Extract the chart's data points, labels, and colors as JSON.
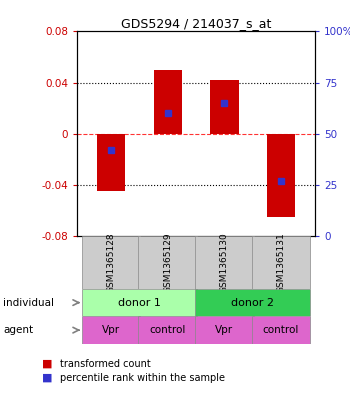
{
  "title": "GDS5294 / 214037_s_at",
  "samples": [
    "GSM1365128",
    "GSM1365129",
    "GSM1365130",
    "GSM1365131"
  ],
  "bar_values": [
    -0.045,
    0.05,
    0.042,
    -0.065
  ],
  "percentile_values": [
    0.42,
    0.6,
    0.65,
    0.27
  ],
  "ylim_left": [
    -0.08,
    0.08
  ],
  "ylim_right": [
    0,
    100
  ],
  "yticks_left": [
    -0.08,
    -0.04,
    0,
    0.04,
    0.08
  ],
  "yticks_right": [
    0,
    25,
    50,
    75,
    100
  ],
  "ytick_labels_left": [
    "-0.08",
    "-0.04",
    "0",
    "0.04",
    "0.08"
  ],
  "ytick_labels_right": [
    "0",
    "25",
    "50",
    "75",
    "100%"
  ],
  "hlines_dotted": [
    -0.04,
    0.04
  ],
  "hline_dashed_red": 0,
  "bar_color": "#cc0000",
  "blue_color": "#3333cc",
  "bar_width": 0.5,
  "individual_labels": [
    "donor 1",
    "donor 2"
  ],
  "individual_colors": [
    "#aaffaa",
    "#33cc55"
  ],
  "agent_labels": [
    "Vpr",
    "control",
    "Vpr",
    "control"
  ],
  "agent_color": "#dd66cc",
  "sample_box_color": "#cccccc",
  "legend_red_label": "transformed count",
  "legend_blue_label": "percentile rank within the sample",
  "left_tick_color": "#cc0000",
  "right_tick_color": "#3333cc",
  "figwidth": 3.5,
  "figheight": 3.93,
  "dpi": 100
}
